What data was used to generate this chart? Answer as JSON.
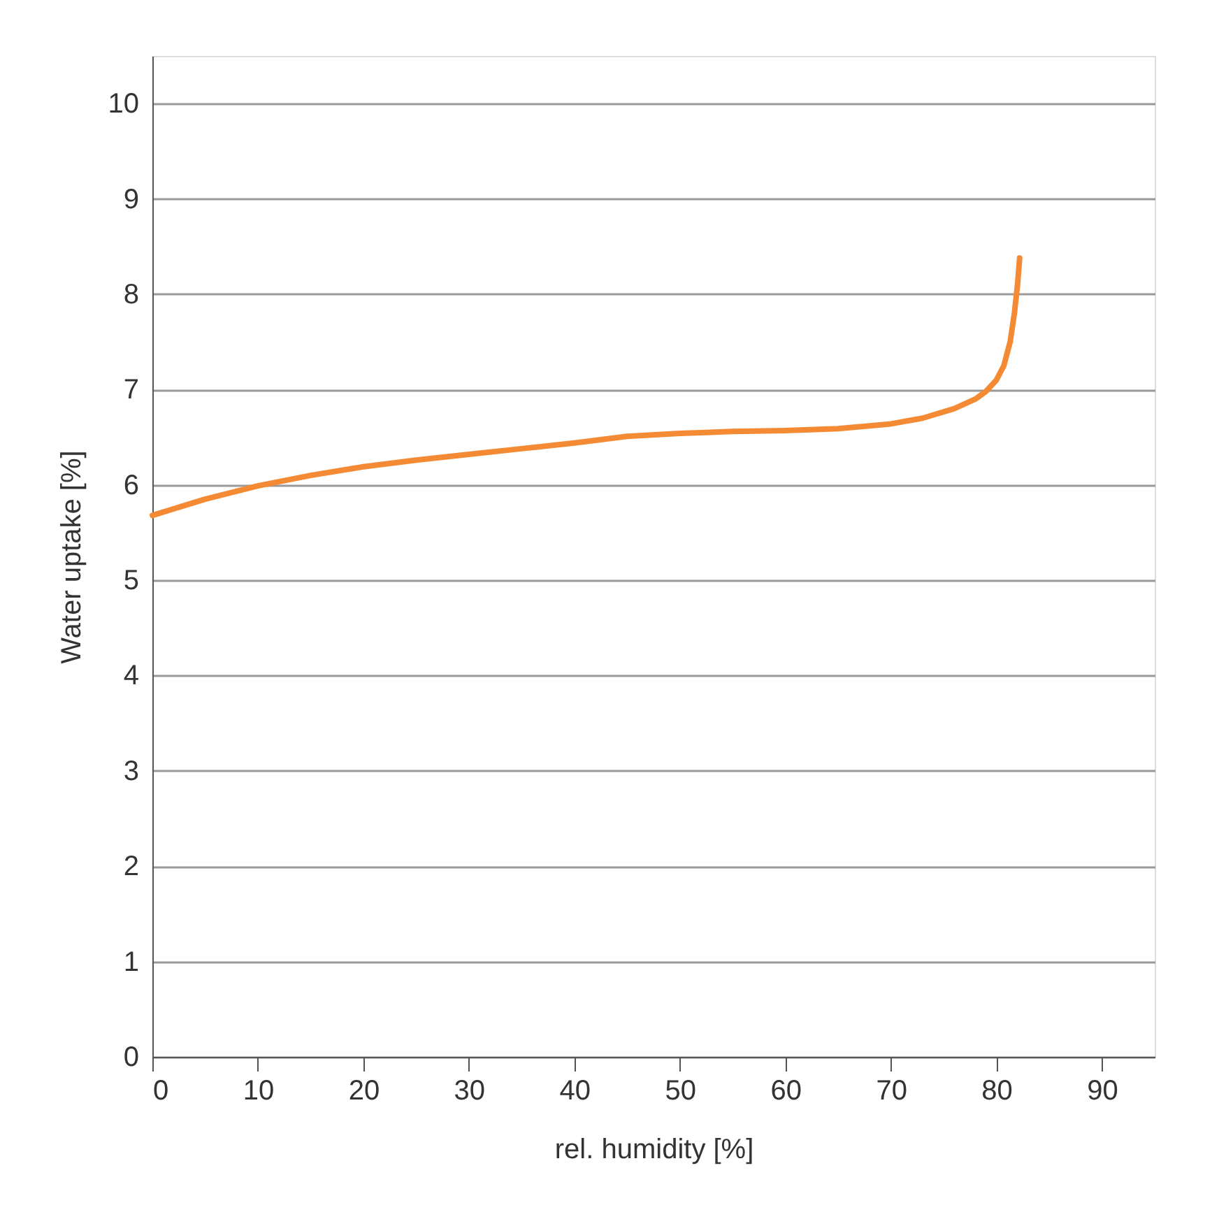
{
  "chart_data": {
    "type": "line",
    "xlabel": "rel. humidity [%]",
    "ylabel": "Water uptake [%]",
    "xlim": [
      0,
      95
    ],
    "xticks": [
      0,
      10,
      20,
      30,
      40,
      50,
      60,
      70,
      80,
      90
    ],
    "ylim": [
      0,
      10.5
    ],
    "yticks": [
      0,
      1,
      2,
      3,
      4,
      5,
      6,
      7,
      8,
      9,
      10
    ],
    "grid": "y",
    "marker": "none",
    "line_style": "solid",
    "series": [
      {
        "color": "#f58a34",
        "x": [
          0,
          5,
          10,
          15,
          20,
          25,
          30,
          35,
          40,
          45,
          50,
          55,
          60,
          65,
          70,
          73,
          76,
          78,
          79,
          80,
          80.7,
          81.3,
          81.7,
          82,
          82.2
        ],
        "values": [
          5.68,
          5.85,
          5.99,
          6.1,
          6.19,
          6.26,
          6.32,
          6.38,
          6.44,
          6.51,
          6.54,
          6.56,
          6.57,
          6.59,
          6.64,
          6.7,
          6.8,
          6.9,
          6.98,
          7.1,
          7.25,
          7.5,
          7.8,
          8.1,
          8.38
        ]
      }
    ]
  }
}
